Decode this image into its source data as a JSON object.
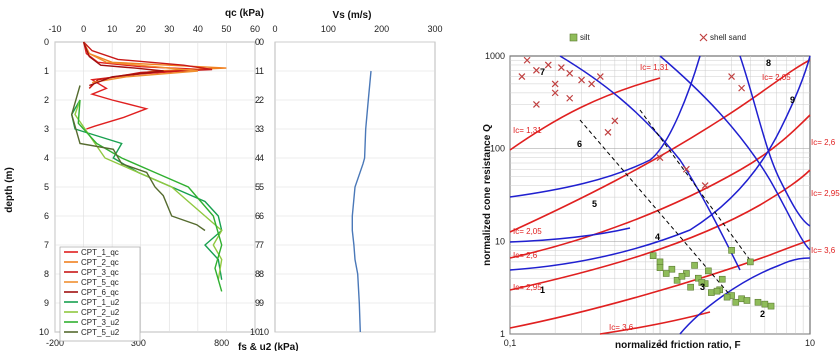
{
  "chart_data": [
    {
      "type": "line",
      "title": "qc (kPa)",
      "top_axis": {
        "label": "qc (kPa)",
        "range": [
          -10,
          60
        ],
        "ticks": [
          "-10",
          "0",
          "10",
          "20",
          "30",
          "40",
          "50",
          "60"
        ]
      },
      "bottom_axis": {
        "label": "fs & u2 (kPa)",
        "range": [
          -200,
          1000
        ],
        "ticks": [
          "-200",
          "300",
          "800"
        ]
      },
      "ylabel": "depth (m)",
      "y_range": [
        0,
        10
      ],
      "y_ticks_left": [
        "0",
        "1",
        "2",
        "3",
        "4",
        "5",
        "6",
        "7",
        "8",
        "9",
        "10"
      ],
      "y_ticks_right": [
        "0",
        "1",
        "2",
        "3",
        "4",
        "5",
        "6",
        "7",
        "8",
        "9",
        "10"
      ],
      "grid": true,
      "legend_position": "bottom-left",
      "series": [
        {
          "name": "CPT_1_qc",
          "color": "#e02020",
          "axis": "top",
          "x": [
            0,
            1,
            5,
            20,
            42,
            20,
            3,
            8,
            3,
            10,
            22,
            14,
            4,
            1
          ],
          "y": [
            0,
            0.4,
            0.7,
            0.85,
            0.95,
            1.1,
            1.3,
            1.6,
            1.8,
            2.0,
            2.3,
            2.6,
            2.9,
            3.0
          ]
        },
        {
          "name": "CPT_2_qc",
          "color": "#f08020",
          "axis": "top",
          "x": [
            0,
            2,
            10,
            30,
            50,
            25,
            5,
            2
          ],
          "y": [
            0,
            0.4,
            0.7,
            0.8,
            0.9,
            1.0,
            1.3,
            1.6
          ]
        },
        {
          "name": "CPT_3_qc",
          "color": "#c81818",
          "axis": "top",
          "x": [
            0,
            3,
            12,
            35,
            45,
            20,
            5,
            2
          ],
          "y": [
            0,
            0.3,
            0.6,
            0.8,
            0.95,
            1.05,
            1.3,
            1.6
          ]
        },
        {
          "name": "CPT_5_qc",
          "color": "#f09030",
          "axis": "top",
          "x": [
            0,
            2,
            8,
            25,
            40,
            15,
            3
          ],
          "y": [
            0,
            0.4,
            0.7,
            0.85,
            1.0,
            1.2,
            1.4
          ]
        },
        {
          "name": "CPT_6_qc",
          "color": "#a01010",
          "axis": "top",
          "x": [
            0,
            2,
            6,
            18,
            28,
            10,
            2
          ],
          "y": [
            0,
            0.5,
            0.8,
            0.9,
            1.0,
            1.2,
            1.5
          ]
        },
        {
          "name": "CPT_1_u2",
          "color": "#18a050",
          "axis": "bottom",
          "x": [
            -50,
            -100,
            -80,
            200,
            150,
            300,
            500,
            700,
            780,
            800,
            700,
            780,
            800
          ],
          "y": [
            2.0,
            2.5,
            3.0,
            3.5,
            4.0,
            4.5,
            5.0,
            5.5,
            6.0,
            6.5,
            7.0,
            7.5,
            8.2
          ]
        },
        {
          "name": "CPT_2_u2",
          "color": "#90c840",
          "axis": "bottom",
          "x": [
            -50,
            -80,
            100,
            300,
            500,
            600,
            700,
            800,
            750,
            800,
            780
          ],
          "y": [
            2.0,
            2.5,
            4.0,
            4.5,
            5.0,
            5.5,
            6.0,
            6.5,
            7.0,
            7.5,
            8.2
          ]
        },
        {
          "name": "CPT_3_u2",
          "color": "#30b030",
          "axis": "bottom",
          "x": [
            -50,
            -60,
            50,
            200,
            400,
            600,
            750,
            800,
            760,
            800
          ],
          "y": [
            2.0,
            2.8,
            3.5,
            4.0,
            4.5,
            5.0,
            6.0,
            7.0,
            7.8,
            8.6
          ]
        },
        {
          "name": "CPT_5_u2",
          "color": "#556b2f",
          "axis": "bottom",
          "x": [
            -50,
            -100,
            -50,
            150,
            200,
            350,
            400,
            450,
            500,
            650,
            700
          ],
          "y": [
            1.5,
            2.5,
            3.5,
            3.7,
            4.2,
            4.5,
            5.0,
            5.3,
            6.0,
            6.3,
            6.5
          ]
        }
      ]
    },
    {
      "type": "line",
      "title": "Vs (m/s)",
      "xlabel": "Vs (m/s)",
      "x_range": [
        0,
        300
      ],
      "x_ticks": [
        "0",
        "100",
        "200",
        "300"
      ],
      "y_range": [
        0,
        10
      ],
      "y_ticks": [
        "0",
        "1",
        "2",
        "3",
        "4",
        "5",
        "6",
        "7",
        "8",
        "9",
        "10"
      ],
      "grid": true,
      "series": [
        {
          "name": "",
          "color": "#4a78b8",
          "x": [
            180,
            175,
            170,
            168,
            165,
            150,
            145,
            145,
            148,
            150,
            155,
            158,
            160
          ],
          "y": [
            1.0,
            2.0,
            3.0,
            4.0,
            4.2,
            5.0,
            6.0,
            6.5,
            7.0,
            7.5,
            8.0,
            9.0,
            10.0
          ]
        }
      ]
    },
    {
      "type": "scatter",
      "title": "",
      "xlabel": "normalized friction ratio, F",
      "ylabel": "normalized cone resistance Q",
      "x_scale": "log",
      "y_scale": "log",
      "x_range": [
        0.1,
        10
      ],
      "y_range": [
        1,
        1000
      ],
      "x_ticks": [
        "0,1",
        "1",
        "10"
      ],
      "y_ticks": [
        "1",
        "10",
        "100",
        "1000"
      ],
      "legend_position": "top",
      "legend": [
        {
          "name": "silt",
          "color": "#8fbc5a",
          "marker": "square"
        },
        {
          "name": "shell sand",
          "color": "#c04040",
          "marker": "x"
        }
      ],
      "zone_labels": [
        "1",
        "2",
        "3",
        "4",
        "5",
        "6",
        "7",
        "8",
        "9"
      ],
      "ic_labels": [
        "Ic= 1,31",
        "Ic= 1,31",
        "Ic= 2,05",
        "Ic= 2,05",
        "Ic= 2,6",
        "Ic= 2,6",
        "Ic= 2,95",
        "Ic= 2,95",
        "Ic= 3,6",
        "Ic= 3,6"
      ],
      "series": [
        {
          "name": "silt",
          "color": "#8fbc5a",
          "x": [
            1.0,
            1.2,
            1.5,
            1.8,
            2.0,
            2.5,
            3.0,
            3.5,
            1.3,
            1.6,
            2.2,
            2.8,
            3.2,
            1.1,
            1.4,
            1.9,
            2.4,
            3.8,
            4.5,
            5.0,
            1.7,
            2.1,
            2.6,
            0.9,
            1.0,
            3.0,
            4.0,
            5.5
          ],
          "y": [
            6.0,
            5.0,
            4.5,
            4.0,
            3.5,
            3.0,
            2.6,
            2.4,
            3.8,
            3.2,
            2.8,
            2.5,
            2.2,
            4.5,
            4.2,
            3.6,
            2.9,
            2.3,
            2.2,
            2.1,
            5.5,
            4.8,
            3.9,
            7.0,
            5.2,
            8.0,
            6.0,
            2.0
          ]
        },
        {
          "name": "shell sand",
          "color": "#c04040",
          "x": [
            0.12,
            0.15,
            0.18,
            0.2,
            0.25,
            0.3,
            0.35,
            0.4,
            0.15,
            0.2,
            0.25,
            0.5,
            1.0,
            2.0,
            3.0,
            3.5,
            0.13,
            0.22,
            0.45,
            1.5
          ],
          "y": [
            600,
            700,
            800,
            500,
            650,
            550,
            500,
            600,
            300,
            400,
            350,
            200,
            80,
            40,
            600,
            450,
            900,
            750,
            150,
            60
          ]
        }
      ]
    }
  ]
}
